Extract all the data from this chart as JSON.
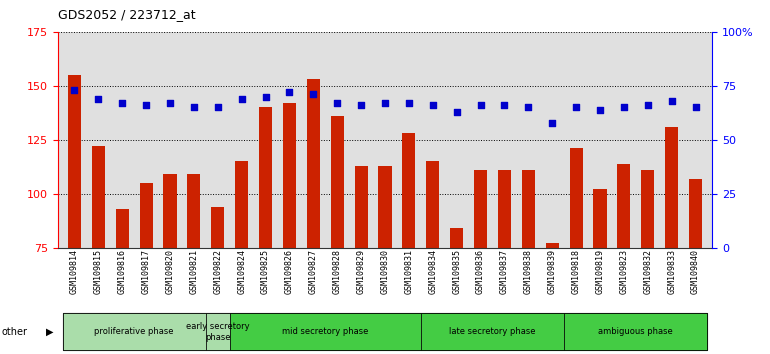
{
  "title": "GDS2052 / 223712_at",
  "samples": [
    "GSM109814",
    "GSM109815",
    "GSM109816",
    "GSM109817",
    "GSM109820",
    "GSM109821",
    "GSM109822",
    "GSM109824",
    "GSM109825",
    "GSM109826",
    "GSM109827",
    "GSM109828",
    "GSM109829",
    "GSM109830",
    "GSM109831",
    "GSM109834",
    "GSM109835",
    "GSM109836",
    "GSM109837",
    "GSM109838",
    "GSM109839",
    "GSM109818",
    "GSM109819",
    "GSM109823",
    "GSM109832",
    "GSM109833",
    "GSM109840"
  ],
  "counts": [
    155,
    122,
    93,
    105,
    109,
    109,
    94,
    115,
    140,
    142,
    153,
    136,
    113,
    113,
    128,
    115,
    84,
    111,
    111,
    111,
    77,
    121,
    102,
    114,
    111,
    131,
    107
  ],
  "percentiles": [
    73,
    69,
    67,
    66,
    67,
    65,
    65,
    69,
    70,
    72,
    71,
    67,
    66,
    67,
    67,
    66,
    63,
    66,
    66,
    65,
    58,
    65,
    64,
    65,
    66,
    68,
    65
  ],
  "phases": [
    {
      "label": "proliferative phase",
      "start": 0,
      "end": 6,
      "color": "#aaddaa"
    },
    {
      "label": "early secretory\nphase",
      "start": 6,
      "end": 7,
      "color": "#aaddaa"
    },
    {
      "label": "mid secretory phase",
      "start": 7,
      "end": 15,
      "color": "#44cc44"
    },
    {
      "label": "late secretory phase",
      "start": 15,
      "end": 21,
      "color": "#44cc44"
    },
    {
      "label": "ambiguous phase",
      "start": 21,
      "end": 27,
      "color": "#44cc44"
    }
  ],
  "ylim_left": [
    75,
    175
  ],
  "ylim_right": [
    0,
    100
  ],
  "yticks_left": [
    75,
    100,
    125,
    150,
    175
  ],
  "yticks_right": [
    0,
    25,
    50,
    75,
    100
  ],
  "ytick_labels_right": [
    "0",
    "25",
    "50",
    "75",
    "100%"
  ],
  "bar_color": "#cc2200",
  "dot_color": "#0000cc",
  "bg_color": "#e0e0e0",
  "phase_border_color": "#333333"
}
